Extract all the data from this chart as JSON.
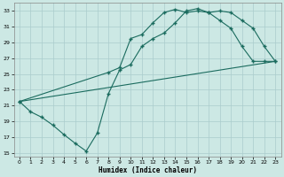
{
  "xlabel": "Humidex (Indice chaleur)",
  "background_color": "#cce8e4",
  "grid_color": "#aacccc",
  "line_color": "#1a6b5e",
  "xlim": [
    -0.5,
    23.5
  ],
  "ylim": [
    14.5,
    34.0
  ],
  "xticks": [
    0,
    1,
    2,
    3,
    4,
    5,
    6,
    7,
    8,
    9,
    10,
    11,
    12,
    13,
    14,
    15,
    16,
    17,
    18,
    19,
    20,
    21,
    22,
    23
  ],
  "yticks": [
    15,
    17,
    19,
    21,
    23,
    25,
    27,
    29,
    31,
    33
  ],
  "series1": {
    "x": [
      0,
      1,
      2,
      3,
      4,
      5,
      6,
      7,
      8,
      9,
      10,
      11,
      12,
      13,
      14,
      15,
      16,
      17,
      18,
      19,
      20,
      21,
      22,
      23
    ],
    "y": [
      21.5,
      20.2,
      19.5,
      18.5,
      17.3,
      16.2,
      15.2,
      17.5,
      22.5,
      25.5,
      26.2,
      28.5,
      29.5,
      30.2,
      31.5,
      33.0,
      33.3,
      32.8,
      33.0,
      32.8,
      31.8,
      30.8,
      28.5,
      26.6
    ]
  },
  "series2": {
    "x": [
      0,
      8,
      9,
      10,
      11,
      12,
      13,
      14,
      15,
      16,
      17,
      18,
      19,
      20,
      21,
      22,
      23
    ],
    "y": [
      21.5,
      25.2,
      25.8,
      29.5,
      30.0,
      31.5,
      32.8,
      33.2,
      32.8,
      33.0,
      32.8,
      31.8,
      30.8,
      28.5,
      26.6,
      26.6,
      26.6
    ]
  },
  "series3": {
    "x": [
      0,
      23
    ],
    "y": [
      21.5,
      26.6
    ]
  }
}
